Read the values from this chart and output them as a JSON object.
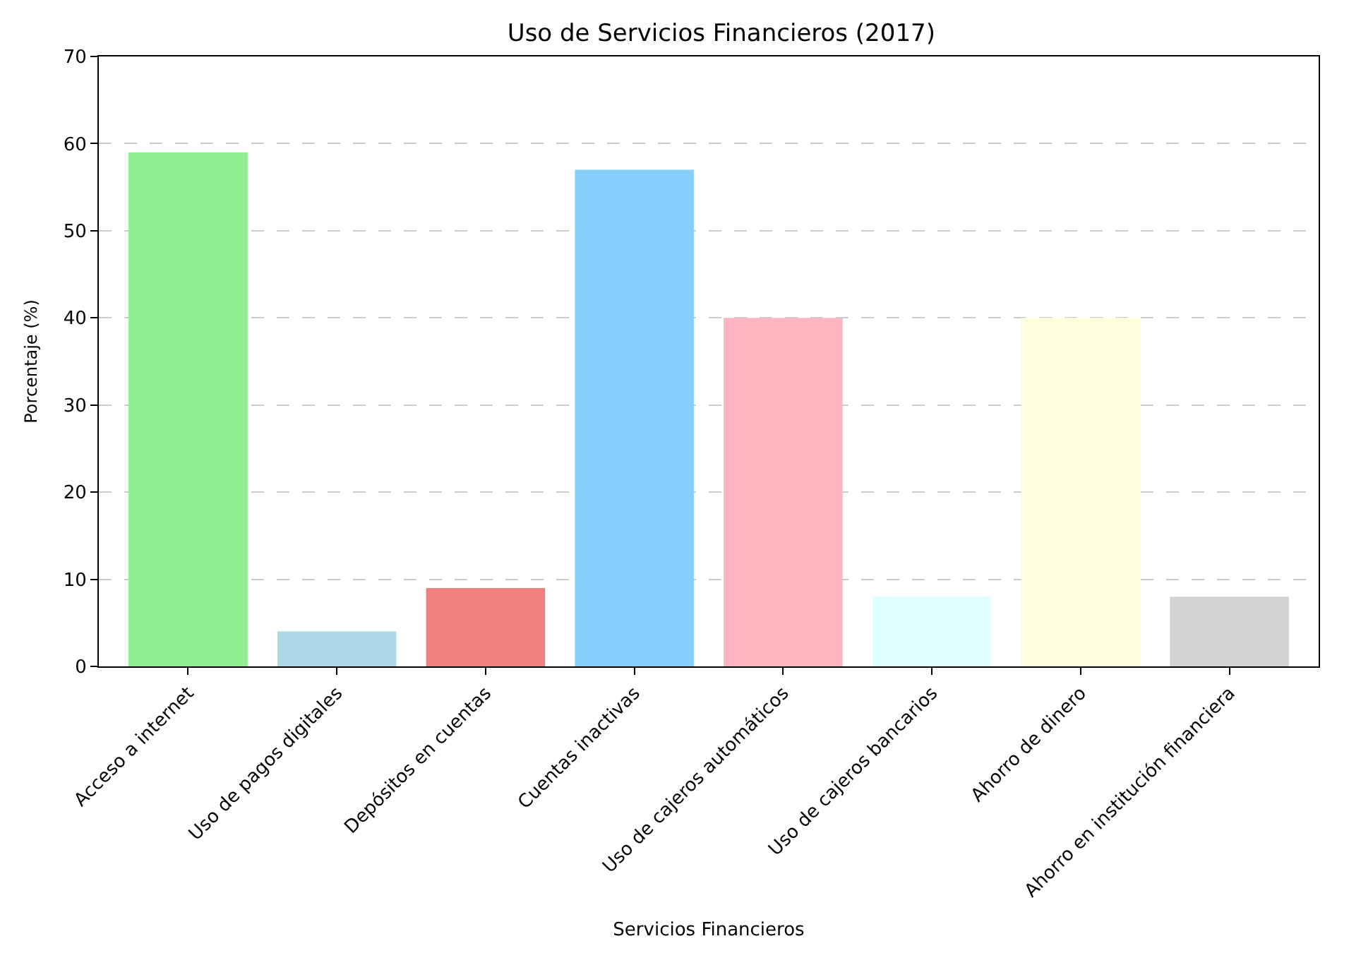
{
  "chart_data": {
    "type": "bar",
    "title": "Uso de Servicios Financieros (2017)",
    "xlabel": "Servicios Financieros",
    "ylabel": "Porcentaje (%)",
    "categories": [
      "Acceso a internet",
      "Uso de pagos digitales",
      "Depósitos en cuentas",
      "Cuentas inactivas",
      "Uso de cajeros automáticos",
      "Uso de cajeros bancarios",
      "Ahorro de dinero",
      "Ahorro en institución financiera"
    ],
    "values": [
      59,
      4,
      9,
      57,
      40,
      8,
      40,
      8
    ],
    "colors": [
      "#90ee90",
      "#add8e6",
      "#f08080",
      "#87cefa",
      "#ffb6c1",
      "#e0ffff",
      "#ffffe0",
      "#d3d3d3"
    ],
    "ylim": [
      0,
      70
    ],
    "yticks": [
      0,
      10,
      20,
      30,
      40,
      50,
      60,
      70
    ],
    "grid": "y"
  }
}
